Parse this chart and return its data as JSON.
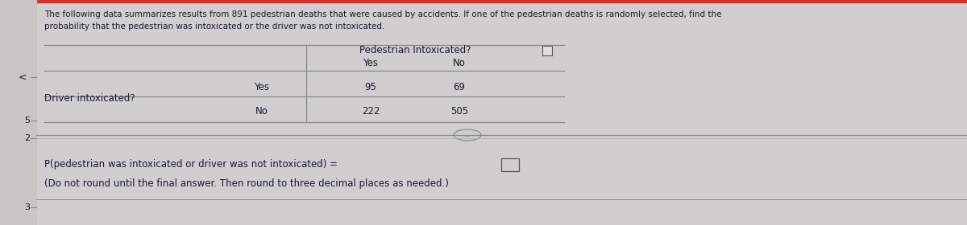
{
  "title_line1": "The following data summarizes results from 891 pedestrian deaths that were caused by accidents. If one of the pedestrian deaths is randomly selected, find the",
  "title_line2": "probability that the pedestrian was intoxicated or the driver was not intoxicated.",
  "col_header": "Pedestrian Intoxicated?",
  "col_sub_yes": "Yes",
  "col_sub_no": "No",
  "row_header": "Driver intoxicated?",
  "row_sub_yes": "Yes",
  "row_sub_no": "No",
  "val_yy": "95",
  "val_yn": "69",
  "val_ny": "222",
  "val_nn": "505",
  "prob_label": "P(pedestrian was intoxicated or driver was not intoxicated) =",
  "prob_note": "(Do not round until the final answer. Then round to three decimal places as needed.)",
  "bg_color": "#d0cece",
  "panel_bg": "#d8d6d4",
  "text_color": "#1a1a2e",
  "table_line_color": "#888888",
  "left_sym": "<",
  "left_5": "5",
  "left_2": "2",
  "left_3": "3",
  "dots_label": "...",
  "fig_width": 12.0,
  "fig_height": 2.8,
  "dpi": 100
}
